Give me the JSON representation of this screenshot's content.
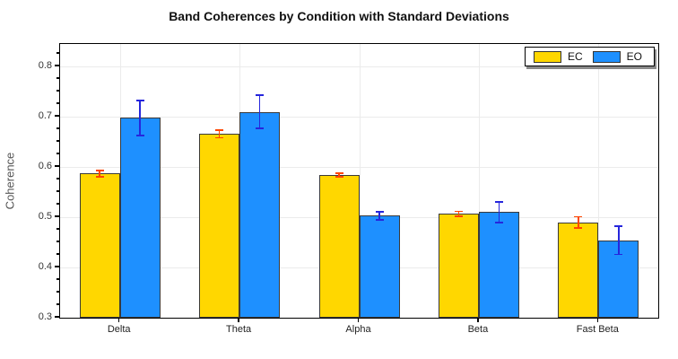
{
  "chart_data": {
    "type": "bar",
    "title": "Band Coherences by Condition with Standard Deviations",
    "ylabel": "Coherence",
    "xlabel": "",
    "categories": [
      "Delta",
      "Theta",
      "Alpha",
      "Beta",
      "Fast Beta"
    ],
    "series": [
      {
        "name": "EC",
        "color": "#FFD700",
        "error_color": "#FF4500",
        "values": [
          0.587,
          0.666,
          0.584,
          0.507,
          0.49
        ],
        "errors": [
          0.006,
          0.008,
          0.004,
          0.005,
          0.011
        ]
      },
      {
        "name": "EO",
        "color": "#1E90FF",
        "error_color": "#2626DC",
        "values": [
          0.698,
          0.71,
          0.503,
          0.51,
          0.454
        ],
        "errors": [
          0.035,
          0.033,
          0.008,
          0.02,
          0.028
        ]
      }
    ],
    "ylim": [
      0.3,
      0.845
    ],
    "yticks": [
      0.3,
      0.4,
      0.5,
      0.6,
      0.7,
      0.8
    ],
    "minor_tick_step": 0.025,
    "grid": true,
    "legend_position": "upper right",
    "bar_edge_color": "#3a3a3a"
  }
}
